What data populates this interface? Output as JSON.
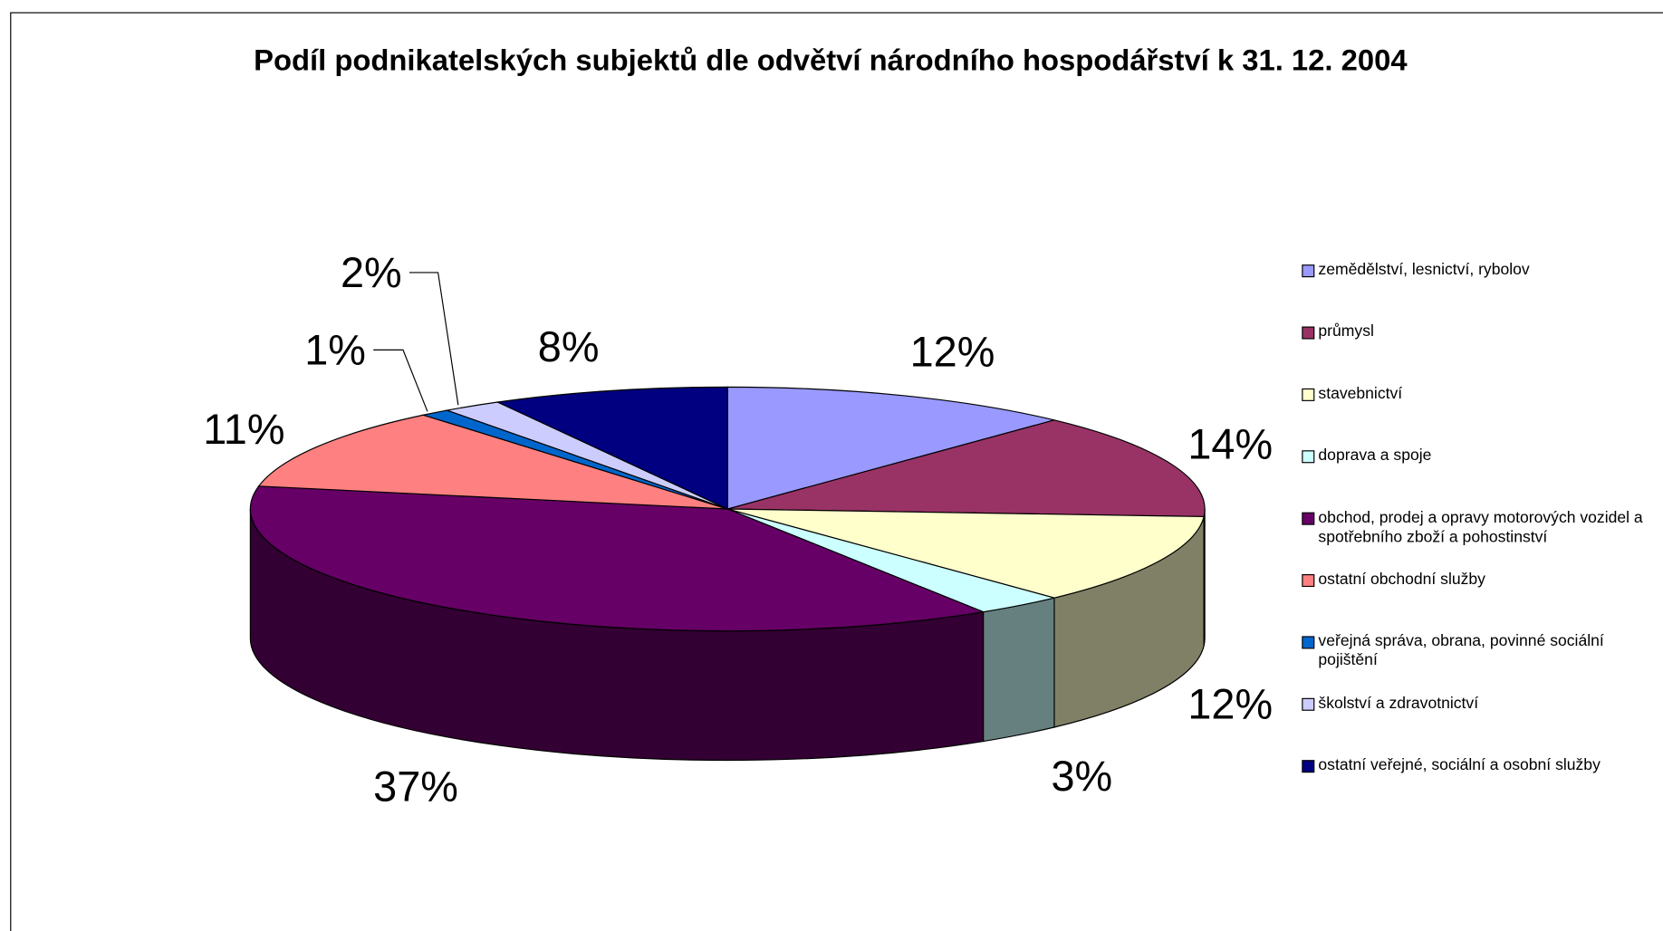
{
  "chart_data": {
    "type": "pie",
    "title": "Podíl podnikatelských subjektů dle odvětví národního hospodářství  k 31. 12. 2004",
    "categories": [
      "zemědělství, lesnictví, rybolov",
      "průmysl",
      "stavebnictví",
      "doprava a spoje",
      "obchod, prodej a opravy motorových vozidel a spotřebního zboží a pohostinství",
      "ostatní obchodní služby",
      "veřejná správa, obrana, povinné sociální pojištění",
      "školství a zdravotnictví",
      "ostatní veřejné, sociální a osobní služby"
    ],
    "values": [
      12,
      14,
      12,
      3,
      37,
      11,
      1,
      2,
      8
    ],
    "value_labels": [
      "12%",
      "14%",
      "12%",
      "3%",
      "37%",
      "11%",
      "1%",
      "2%",
      "8%"
    ],
    "colors": [
      "#9999ff",
      "#993366",
      "#ffffcc",
      "#ccffff",
      "#660066",
      "#ff8080",
      "#0066cc",
      "#ccccff",
      "#000080"
    ],
    "legend": "right"
  }
}
